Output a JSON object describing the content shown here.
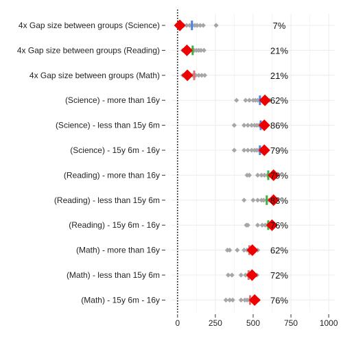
{
  "chart_data": {
    "type": "scatter",
    "title": "",
    "xlabel": "",
    "ylabel": "",
    "xlim": [
      -40,
      1040
    ],
    "xticks": [
      "0",
      "250",
      "500",
      "750",
      "1000"
    ],
    "xtick_values": [
      0,
      250,
      500,
      750,
      1000
    ],
    "reference_line_x": 0,
    "grid": true,
    "legend": "none",
    "colors": {
      "distribution": "#a6a6a6",
      "marker": "#ee0000",
      "blue_tick": "#4f82e0",
      "green_tick": "#3cb043",
      "red_tick": "#e07070",
      "grid": "#ececec"
    },
    "rows": [
      {
        "label": "4x Gap size between groups (Science)",
        "percent": "7%",
        "value": 15,
        "distribution": [
          20,
          40,
          60,
          80,
          100,
          115,
          130,
          150,
          170,
          255
        ],
        "ticks": [
          {
            "x": 95,
            "color": "blue"
          }
        ]
      },
      {
        "label": "4x Gap size between groups (Reading)",
        "percent": "21%",
        "value": 62,
        "distribution": [
          35,
          55,
          75,
          95,
          110,
          125,
          140,
          155,
          175
        ],
        "ticks": [
          {
            "x": 100,
            "color": "green"
          }
        ]
      },
      {
        "label": "4x Gap size between groups (Math)",
        "percent": "21%",
        "value": 65,
        "distribution": [
          35,
          55,
          80,
          100,
          120,
          140,
          160,
          180
        ],
        "ticks": [
          {
            "x": 110,
            "color": "red"
          }
        ]
      },
      {
        "label": "(Science) - more than 16y",
        "percent": "62%",
        "value": 578,
        "distribution": [
          390,
          450,
          475,
          500,
          515,
          530,
          545,
          560,
          570,
          595,
          610
        ],
        "ticks": [
          {
            "x": 545,
            "color": "blue"
          }
        ]
      },
      {
        "label": "(Science) - less than 15y 6m",
        "percent": "86%",
        "value": 574,
        "distribution": [
          375,
          440,
          465,
          490,
          510,
          525,
          540,
          555,
          565,
          590
        ],
        "ticks": [
          {
            "x": 550,
            "color": "blue"
          }
        ]
      },
      {
        "label": "(Science) - 15y 6m - 16y",
        "percent": "79%",
        "value": 574,
        "distribution": [
          375,
          440,
          465,
          490,
          510,
          525,
          540,
          555,
          565,
          590
        ],
        "ticks": [
          {
            "x": 545,
            "color": "blue"
          }
        ]
      },
      {
        "label": "(Reading) - more than 16y",
        "percent": "79%",
        "value": 635,
        "distribution": [
          460,
          475,
          530,
          555,
          575,
          595,
          610,
          625,
          650
        ],
        "ticks": [
          {
            "x": 600,
            "color": "green"
          }
        ]
      },
      {
        "label": "(Reading) - less than 15y 6m",
        "percent": "83%",
        "value": 635,
        "distribution": [
          440,
          500,
          530,
          555,
          570,
          590,
          605,
          620,
          650
        ],
        "ticks": [
          {
            "x": 590,
            "color": "green"
          }
        ]
      },
      {
        "label": "(Reading) - 15y 6m - 16y",
        "percent": "76%",
        "value": 625,
        "distribution": [
          455,
          465,
          530,
          560,
          580,
          595,
          610,
          625,
          640
        ],
        "ticks": [
          {
            "x": 600,
            "color": "green"
          }
        ]
      },
      {
        "label": "(Math) - more than 16y",
        "percent": "62%",
        "value": 495,
        "distribution": [
          330,
          345,
          395,
          440,
          460,
          475,
          490,
          505,
          515,
          530
        ],
        "ticks": [
          {
            "x": 475,
            "color": "red"
          }
        ]
      },
      {
        "label": "(Math) - less than 15y 6m",
        "percent": "72%",
        "value": 493,
        "distribution": [
          335,
          360,
          420,
          450,
          465,
          480,
          495,
          510,
          525
        ],
        "ticks": [
          {
            "x": 470,
            "color": "red"
          }
        ]
      },
      {
        "label": "(Math) - 15y 6m - 16y",
        "percent": "76%",
        "value": 510,
        "distribution": [
          320,
          345,
          365,
          420,
          445,
          460,
          475,
          490,
          505,
          520,
          535
        ],
        "ticks": [
          {
            "x": 480,
            "color": "red"
          }
        ]
      }
    ]
  }
}
